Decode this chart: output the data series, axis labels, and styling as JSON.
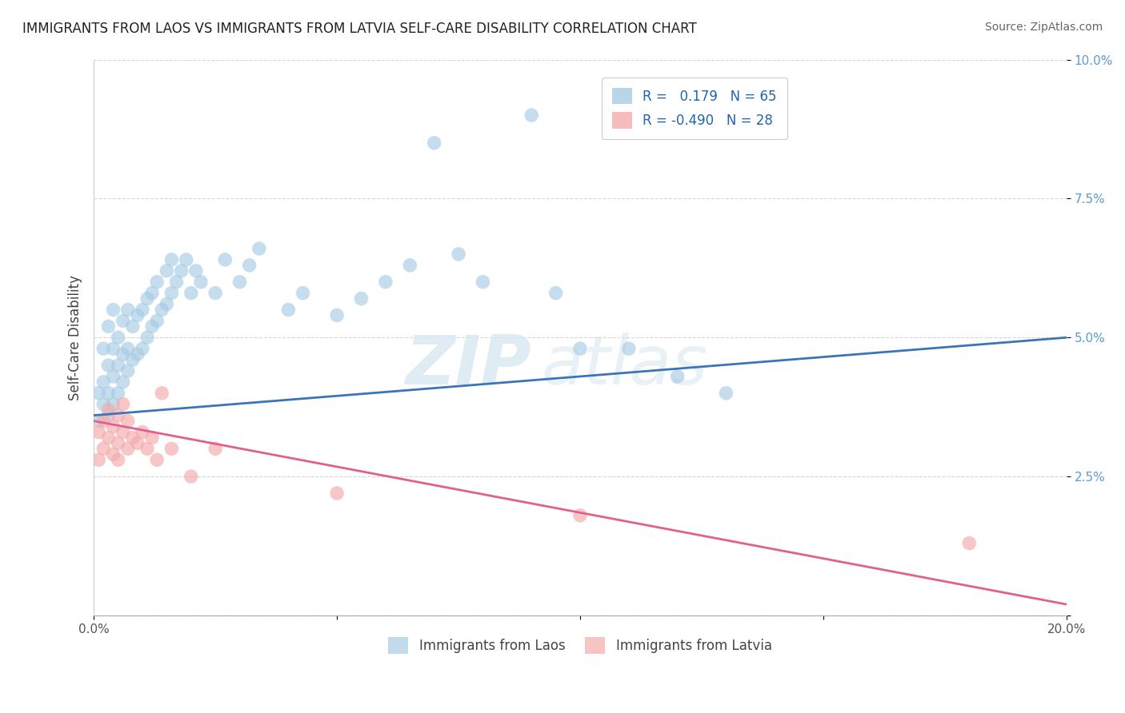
{
  "title": "IMMIGRANTS FROM LAOS VS IMMIGRANTS FROM LATVIA SELF-CARE DISABILITY CORRELATION CHART",
  "source": "Source: ZipAtlas.com",
  "ylabel": "Self-Care Disability",
  "xlim": [
    0.0,
    0.2
  ],
  "ylim": [
    0.0,
    0.1
  ],
  "xticks": [
    0.0,
    0.2
  ],
  "xticklabels": [
    "0.0%",
    "20.0%"
  ],
  "yticks": [
    0.025,
    0.05,
    0.075,
    0.1
  ],
  "yticklabels": [
    "2.5%",
    "5.0%",
    "7.5%",
    "10.0%"
  ],
  "laos_R": 0.179,
  "laos_N": 65,
  "latvia_R": -0.49,
  "latvia_N": 28,
  "laos_color": "#a8cce4",
  "latvia_color": "#f4aaaa",
  "laos_line_color": "#3a75b8",
  "latvia_line_color": "#e06090",
  "laos_x": [
    0.001,
    0.001,
    0.002,
    0.002,
    0.002,
    0.003,
    0.003,
    0.003,
    0.003,
    0.004,
    0.004,
    0.004,
    0.004,
    0.005,
    0.005,
    0.005,
    0.006,
    0.006,
    0.006,
    0.007,
    0.007,
    0.007,
    0.008,
    0.008,
    0.009,
    0.009,
    0.01,
    0.01,
    0.011,
    0.011,
    0.012,
    0.012,
    0.013,
    0.013,
    0.014,
    0.015,
    0.015,
    0.016,
    0.016,
    0.017,
    0.018,
    0.019,
    0.02,
    0.021,
    0.022,
    0.025,
    0.027,
    0.03,
    0.032,
    0.034,
    0.04,
    0.043,
    0.05,
    0.055,
    0.06,
    0.065,
    0.07,
    0.075,
    0.08,
    0.09,
    0.095,
    0.1,
    0.11,
    0.12,
    0.13
  ],
  "laos_y": [
    0.035,
    0.04,
    0.038,
    0.042,
    0.048,
    0.036,
    0.04,
    0.045,
    0.052,
    0.038,
    0.043,
    0.048,
    0.055,
    0.04,
    0.045,
    0.05,
    0.042,
    0.047,
    0.053,
    0.044,
    0.048,
    0.055,
    0.046,
    0.052,
    0.047,
    0.054,
    0.048,
    0.055,
    0.05,
    0.057,
    0.052,
    0.058,
    0.053,
    0.06,
    0.055,
    0.056,
    0.062,
    0.058,
    0.064,
    0.06,
    0.062,
    0.064,
    0.058,
    0.062,
    0.06,
    0.058,
    0.064,
    0.06,
    0.063,
    0.066,
    0.055,
    0.058,
    0.054,
    0.057,
    0.06,
    0.063,
    0.085,
    0.065,
    0.06,
    0.09,
    0.058,
    0.048,
    0.048,
    0.043,
    0.04
  ],
  "latvia_x": [
    0.001,
    0.001,
    0.002,
    0.002,
    0.003,
    0.003,
    0.004,
    0.004,
    0.005,
    0.005,
    0.005,
    0.006,
    0.006,
    0.007,
    0.007,
    0.008,
    0.009,
    0.01,
    0.011,
    0.012,
    0.013,
    0.014,
    0.016,
    0.02,
    0.025,
    0.05,
    0.1,
    0.18
  ],
  "latvia_y": [
    0.033,
    0.028,
    0.03,
    0.035,
    0.032,
    0.037,
    0.029,
    0.034,
    0.031,
    0.036,
    0.028,
    0.033,
    0.038,
    0.03,
    0.035,
    0.032,
    0.031,
    0.033,
    0.03,
    0.032,
    0.028,
    0.04,
    0.03,
    0.025,
    0.03,
    0.022,
    0.018,
    0.013
  ],
  "laos_line_x0": 0.0,
  "laos_line_y0": 0.036,
  "laos_line_x1": 0.2,
  "laos_line_y1": 0.05,
  "latvia_line_x0": 0.0,
  "latvia_line_y0": 0.035,
  "latvia_line_x1": 0.2,
  "latvia_line_y1": 0.002,
  "watermark_zip": "ZIP",
  "watermark_atlas": "atlas",
  "background_color": "#ffffff",
  "grid_color": "#cccccc"
}
